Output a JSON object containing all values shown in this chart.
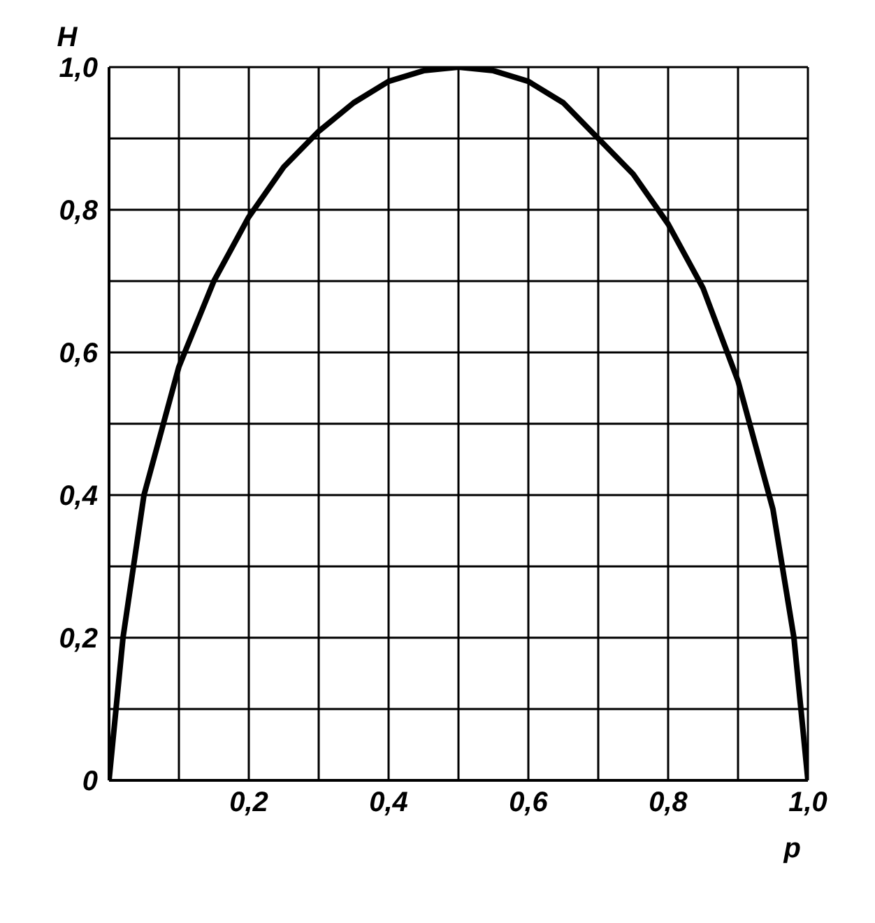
{
  "chart_data": {
    "type": "line",
    "xlabel": "p",
    "ylabel": "H",
    "x": [
      0,
      0.02,
      0.05,
      0.1,
      0.15,
      0.2,
      0.25,
      0.3,
      0.35,
      0.4,
      0.45,
      0.5,
      0.55,
      0.6,
      0.65,
      0.7,
      0.75,
      0.8,
      0.85,
      0.9,
      0.95,
      0.98,
      1.0
    ],
    "values": [
      0,
      0.2,
      0.4,
      0.58,
      0.7,
      0.79,
      0.86,
      0.91,
      0.95,
      0.98,
      0.995,
      1.0,
      0.995,
      0.98,
      0.95,
      0.9,
      0.85,
      0.78,
      0.69,
      0.56,
      0.38,
      0.2,
      0
    ],
    "color": "#000000",
    "marker": "none",
    "line_style": "solid",
    "grid": true,
    "xlim": [
      0,
      1
    ],
    "ylim": [
      0,
      1
    ],
    "xticks": [
      {
        "value": 0,
        "label": null
      },
      {
        "value": 0.1,
        "label": null
      },
      {
        "value": 0.2,
        "label": "0,2"
      },
      {
        "value": 0.3,
        "label": null
      },
      {
        "value": 0.4,
        "label": "0,4"
      },
      {
        "value": 0.5,
        "label": null
      },
      {
        "value": 0.6,
        "label": "0,6"
      },
      {
        "value": 0.7,
        "label": null
      },
      {
        "value": 0.8,
        "label": "0,8"
      },
      {
        "value": 0.9,
        "label": null
      },
      {
        "value": 1.0,
        "label": "1,0"
      }
    ],
    "yticks": [
      {
        "value": 0,
        "label": "0"
      },
      {
        "value": 0.1,
        "label": null
      },
      {
        "value": 0.2,
        "label": "0,2"
      },
      {
        "value": 0.3,
        "label": null
      },
      {
        "value": 0.4,
        "label": "0,4"
      },
      {
        "value": 0.5,
        "label": null
      },
      {
        "value": 0.6,
        "label": "0,6"
      },
      {
        "value": 0.7,
        "label": null
      },
      {
        "value": 0.8,
        "label": "0,8"
      },
      {
        "value": 0.9,
        "label": null
      },
      {
        "value": 1.0,
        "label": "1,0"
      }
    ]
  }
}
